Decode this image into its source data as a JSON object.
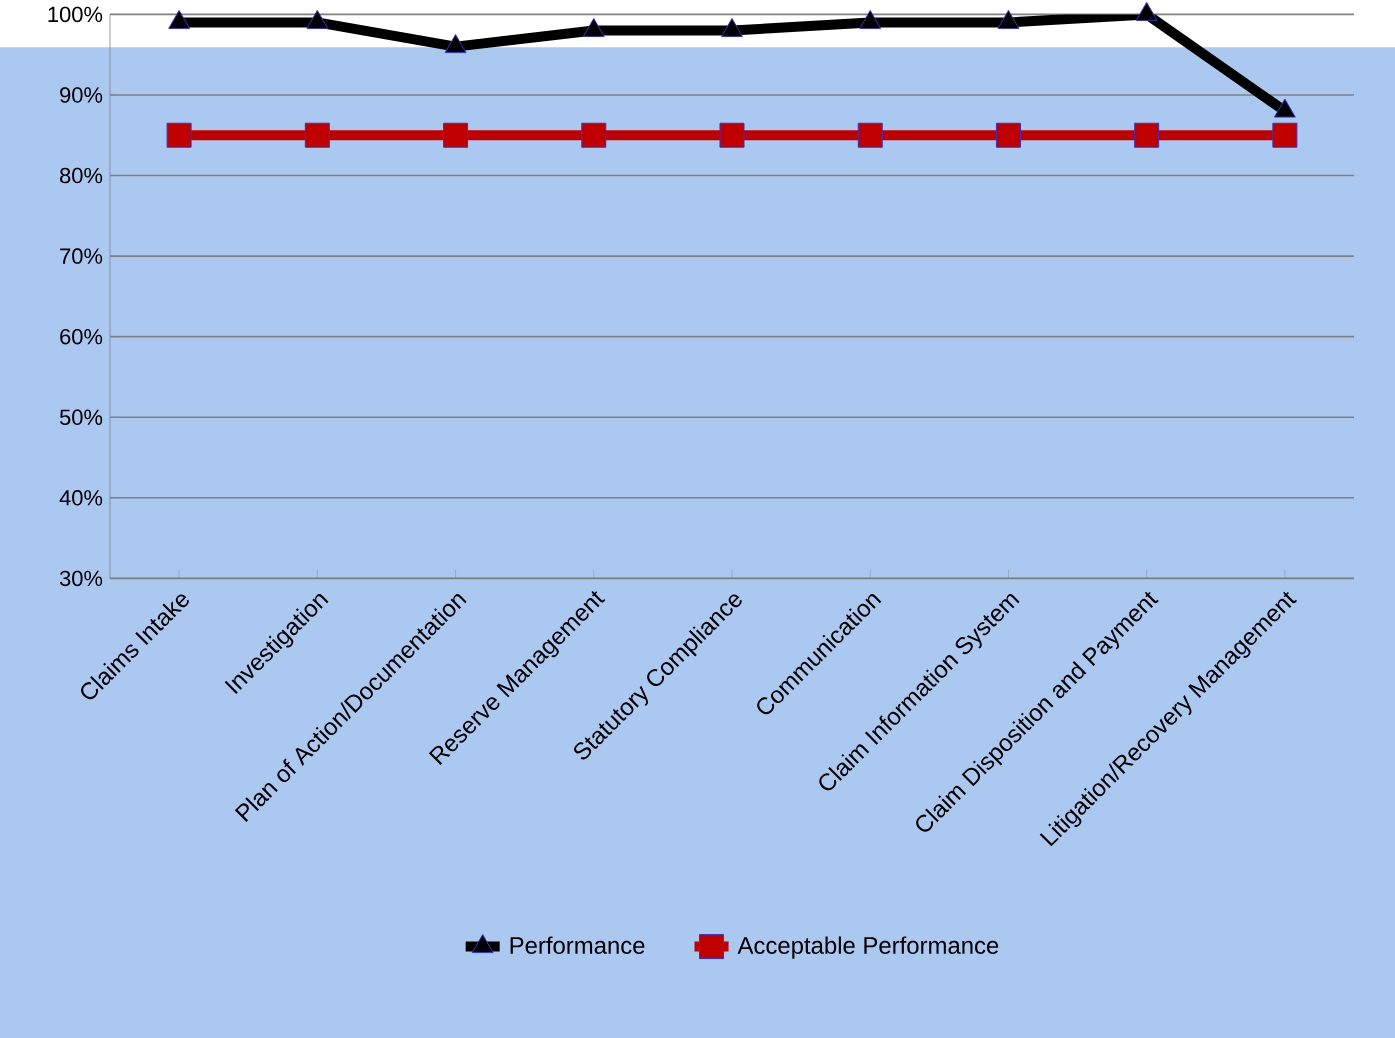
{
  "chart_data": {
    "type": "line",
    "categories": [
      "Claims Intake",
      "Investigation",
      "Plan of Action/Documentation",
      "Reserve Management",
      "Statutory Compliance",
      "Communication",
      "Claim Information System",
      "Claim Disposition and Payment",
      "Litigation/Recovery Management"
    ],
    "series": [
      {
        "name": "Performance",
        "color": "#000000",
        "marker": "triangle",
        "values": [
          99,
          99,
          96,
          98,
          98,
          99,
          99,
          100,
          88
        ]
      },
      {
        "name": "Acceptable Performance",
        "color": "#c00000",
        "marker": "square",
        "values": [
          85,
          85,
          85,
          85,
          85,
          85,
          85,
          85,
          85
        ]
      }
    ],
    "ylim": [
      30,
      100
    ],
    "yticks": [
      {
        "value": 30,
        "label": "30%"
      },
      {
        "value": 40,
        "label": "40%"
      },
      {
        "value": 50,
        "label": "50%"
      },
      {
        "value": 60,
        "label": "60%"
      },
      {
        "value": 70,
        "label": "70%"
      },
      {
        "value": 80,
        "label": "80%"
      },
      {
        "value": 90,
        "label": "90%"
      },
      {
        "value": 100,
        "label": "100%"
      }
    ],
    "grid": "y",
    "legend": "bottom",
    "line_style": "solid"
  }
}
